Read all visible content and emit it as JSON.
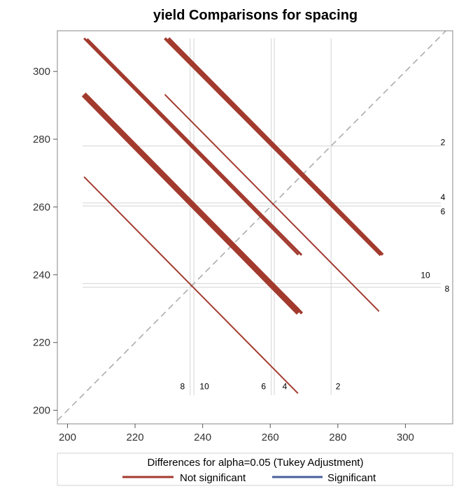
{
  "chart_data": {
    "type": "diffogram",
    "title": "yield Comparisons for spacing",
    "xlim": [
      197,
      314
    ],
    "ylim": [
      196,
      312
    ],
    "x_ticks": [
      200,
      220,
      240,
      260,
      280,
      300
    ],
    "y_ticks": [
      200,
      220,
      240,
      260,
      280,
      300
    ],
    "diagonal_reference": true,
    "levels": [
      {
        "name": "2",
        "mean": 278.0
      },
      {
        "name": "4",
        "mean": 261.2
      },
      {
        "name": "6",
        "mean": 260.3
      },
      {
        "name": "8",
        "mean": 236.3
      },
      {
        "name": "10",
        "mean": 237.4
      }
    ],
    "vertical_ref_labels": [
      "8",
      "10",
      "6",
      "4",
      "2"
    ],
    "horizontal_ref_labels": [
      "2",
      "4",
      "6",
      "10",
      "8"
    ],
    "comparisons": [
      {
        "pair": "2-4",
        "x1": 228.8,
        "y1": 309.8,
        "x2": 292.7,
        "y2": 245.8,
        "width": 4,
        "significant": false
      },
      {
        "pair": "2-6",
        "x1": 229.9,
        "y1": 309.8,
        "x2": 293.3,
        "y2": 245.9,
        "width": 4,
        "significant": false
      },
      {
        "pair": "2-8",
        "x1": 228.8,
        "y1": 293.2,
        "x2": 292.2,
        "y2": 229.2,
        "width": 2,
        "significant": false
      },
      {
        "pair": "4-6",
        "x1": 204.9,
        "y1": 309.8,
        "x2": 268.3,
        "y2": 245.9,
        "width": 3,
        "significant": false
      },
      {
        "pair": "4-8",
        "x1": 205.8,
        "y1": 309.6,
        "x2": 269.3,
        "y2": 245.8,
        "width": 3,
        "significant": false
      },
      {
        "pair": "4-10",
        "x1": 204.8,
        "y1": 293.2,
        "x2": 268.4,
        "y2": 228.8,
        "width": 8,
        "significant": false
      },
      {
        "pair": "6-8",
        "x1": 205.8,
        "y1": 292.8,
        "x2": 269.4,
        "y2": 228.6,
        "width": 4,
        "significant": false
      },
      {
        "pair": "6-10",
        "x1": 206.2,
        "y1": 292.0,
        "x2": 268.6,
        "y2": 229.6,
        "width": 3,
        "significant": false
      },
      {
        "pair": "8-10",
        "x1": 204.9,
        "y1": 268.9,
        "x2": 268.2,
        "y2": 205.0,
        "width": 2,
        "significant": false
      }
    ],
    "legend": {
      "title": "Differences for alpha=0.05 (Tukey Adjustment)",
      "entries": [
        {
          "label": "Not significant",
          "color": "#a23a2e"
        },
        {
          "label": "Significant",
          "color": "#4a5f9c"
        }
      ],
      "placement": "bottom"
    },
    "colors": {
      "not_significant": "#a23a2e",
      "significant": "#4a5f9c",
      "reference_line": "#d4d4d4",
      "diagonal": "#aaaaaa",
      "frame": "#888888"
    }
  }
}
